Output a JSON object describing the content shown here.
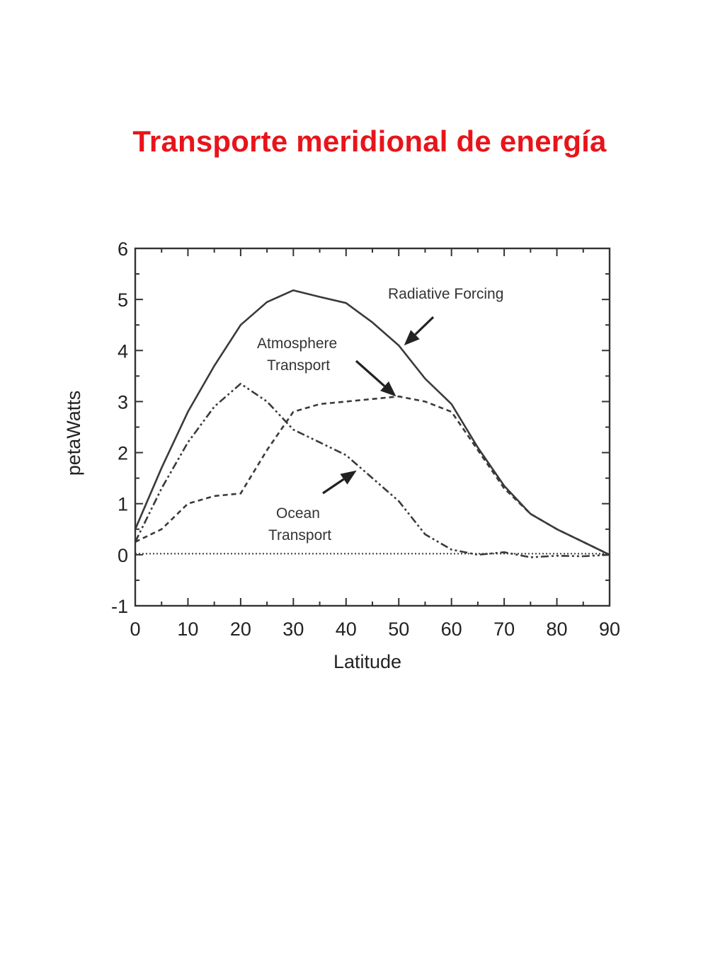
{
  "page": {
    "title": "Transporte meridional de energía",
    "title_color": "#e8141a"
  },
  "chart_data": {
    "type": "line",
    "xlabel": "Latitude",
    "ylabel": "petaWatts",
    "xlim": [
      0,
      90
    ],
    "ylim": [
      -1,
      6
    ],
    "xticks": [
      0,
      10,
      20,
      30,
      40,
      50,
      60,
      70,
      80,
      90
    ],
    "yticks": [
      -1,
      0,
      1,
      2,
      3,
      4,
      5,
      6
    ],
    "grid": false,
    "legend": "none (curves labelled with annotations and arrows)",
    "series": [
      {
        "name": "Radiative Forcing",
        "style": "solid",
        "x": [
          0,
          5,
          10,
          15,
          20,
          25,
          30,
          35,
          40,
          45,
          50,
          55,
          60,
          65,
          70,
          75,
          80,
          85,
          90
        ],
        "y": [
          0.5,
          1.7,
          2.8,
          3.7,
          4.5,
          4.95,
          5.18,
          5.05,
          4.93,
          4.55,
          4.1,
          3.45,
          2.95,
          2.1,
          1.35,
          0.8,
          0.5,
          0.25,
          0.0
        ]
      },
      {
        "name": "Atmosphere Transport",
        "style": "dashed",
        "x": [
          0,
          5,
          10,
          15,
          20,
          25,
          30,
          35,
          40,
          45,
          50,
          55,
          60,
          65,
          70,
          75,
          80,
          85,
          90
        ],
        "y": [
          0.25,
          0.5,
          1.0,
          1.15,
          1.2,
          2.05,
          2.8,
          2.95,
          3.0,
          3.05,
          3.1,
          3.0,
          2.8,
          2.05,
          1.3,
          0.8,
          0.5,
          0.25,
          0.0
        ]
      },
      {
        "name": "Ocean Transport",
        "style": "dash-dot",
        "x": [
          0,
          5,
          10,
          15,
          20,
          25,
          30,
          35,
          40,
          45,
          50,
          55,
          60,
          65,
          70,
          75,
          80,
          85,
          90
        ],
        "y": [
          0.25,
          1.3,
          2.2,
          2.9,
          3.35,
          3.0,
          2.45,
          2.2,
          1.95,
          1.5,
          1.05,
          0.4,
          0.1,
          0.0,
          0.05,
          -0.05,
          -0.02,
          -0.03,
          0.0
        ]
      },
      {
        "name": "",
        "style": "dotted",
        "x": [
          0,
          90
        ],
        "y": [
          0.02,
          0.02
        ]
      }
    ],
    "annotations": [
      {
        "text": "Radiative Forcing",
        "points_to": "Radiative Forcing",
        "at_x": 51,
        "at_y": 4.1
      },
      {
        "text": "Atmosphere",
        "points_to": "Atmosphere Transport",
        "at_x": 49.5,
        "at_y": 3.1
      },
      {
        "text": "Transport",
        "points_to": "Atmosphere Transport"
      },
      {
        "text": "Ocean",
        "points_to": "Ocean Transport",
        "at_x": 42,
        "at_y": 1.65
      },
      {
        "text": "Transport",
        "points_to": "Ocean Transport"
      }
    ]
  }
}
